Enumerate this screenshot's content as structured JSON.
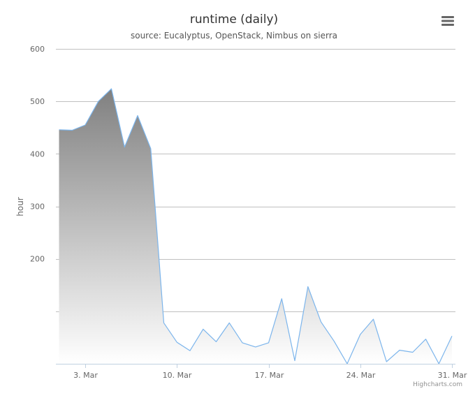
{
  "chart_data": {
    "type": "area",
    "title": "runtime (daily)",
    "subtitle": "source: Eucalyptus, OpenStack, Nimbus on sierra",
    "ylabel": "hour",
    "xlabel": "",
    "ylim": [
      0,
      600
    ],
    "yticks": [
      600,
      500,
      400,
      300,
      200
    ],
    "xlim": [
      "2013-03-01",
      "2013-31"
    ],
    "x_ticks": [
      {
        "date": "2013-03-03",
        "label": "3. Mar"
      },
      {
        "date": "2013-03-10",
        "label": "10. Mar"
      },
      {
        "date": "2013-03-17",
        "label": "17. Mar"
      },
      {
        "date": "2013-03-24",
        "label": "24. Mar"
      },
      {
        "date": "2013-03-31",
        "label": "31. Mar"
      }
    ],
    "grid": true,
    "legend": "none",
    "colors": {
      "line": "#7cb5ec",
      "fill_top": "#808080",
      "fill_bottom": "#ffffff",
      "grid": "#c0c0c0"
    },
    "series": [
      {
        "x": [
          "2013-03-01",
          "2013-03-02",
          "2013-03-03",
          "2013-03-04",
          "2013-03-05",
          "2013-03-06",
          "2013-03-07",
          "2013-03-08",
          "2013-03-09",
          "2013-03-10",
          "2013-03-11",
          "2013-03-12",
          "2013-03-13",
          "2013-03-14",
          "2013-03-15",
          "2013-03-16",
          "2013-03-17",
          "2013-03-18",
          "2013-03-19",
          "2013-03-20",
          "2013-03-21",
          "2013-03-22",
          "2013-03-23",
          "2013-03-24",
          "2013-03-25",
          "2013-03-26",
          "2013-03-27",
          "2013-03-28",
          "2013-03-29",
          "2013-03-30",
          "2013-03-31"
        ],
        "values": [
          446,
          445,
          455,
          500,
          524,
          413,
          473,
          410,
          78,
          41,
          25,
          66,
          42,
          78,
          40,
          32,
          40,
          124,
          6,
          147,
          80,
          43,
          0,
          56,
          85,
          4,
          26,
          22,
          47,
          0,
          53
        ]
      }
    ]
  },
  "credits": "Highcharts.com",
  "menu_icon": "hamburger-menu-icon"
}
